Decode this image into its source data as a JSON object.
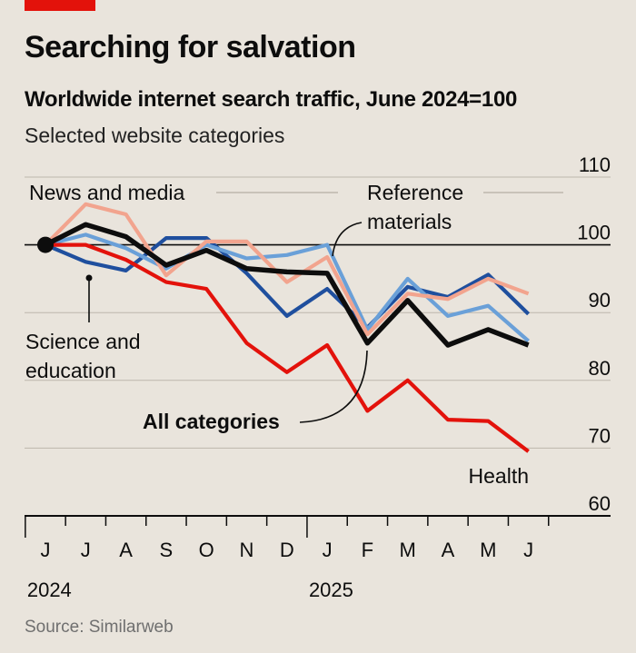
{
  "header": {
    "title": "Searching for salvation",
    "subtitle": "Worldwide internet search traffic, June 2024=100",
    "subsubtitle": "Selected website categories"
  },
  "source": "Source: Similarweb",
  "colors": {
    "background": "#e9e4dc",
    "accent": "#e3120b",
    "all_categories": "#0d0d0d",
    "news_and_media": "#1f4f9e",
    "reference_materials": "#6aa0d8",
    "science_and_education": "#f2a48e",
    "health": "#e3120b"
  },
  "chart_data": {
    "type": "line",
    "title": "Worldwide internet search traffic, June 2024=100",
    "ylim": [
      60,
      110
    ],
    "yticks": [
      60,
      70,
      80,
      90,
      100,
      110
    ],
    "reference_line": 100,
    "categories": [
      "J",
      "J",
      "A",
      "S",
      "O",
      "N",
      "D",
      "J",
      "F",
      "M",
      "A",
      "M",
      "J"
    ],
    "year_labels": [
      {
        "label": "2024",
        "start_index": 0
      },
      {
        "label": "2025",
        "start_index": 7
      }
    ],
    "series": [
      {
        "name": "News and media",
        "key": "news_and_media",
        "values": [
          100,
          97.5,
          96.2,
          101,
          101,
          95.8,
          89.5,
          93.5,
          87.8,
          93.8,
          92.3,
          95.6,
          89.8
        ]
      },
      {
        "name": "Reference materials",
        "key": "reference_materials",
        "values": [
          100,
          101.5,
          99.5,
          96.5,
          100,
          98,
          98.5,
          100,
          87.5,
          95,
          89.5,
          91,
          85.8
        ]
      },
      {
        "name": "Science and education",
        "key": "science_and_education",
        "values": [
          100,
          106,
          104.5,
          95.5,
          100.5,
          100.5,
          94.5,
          98.2,
          86.8,
          92.8,
          92,
          95,
          92.8
        ]
      },
      {
        "name": "Health",
        "key": "health",
        "values": [
          100,
          100,
          97.8,
          94.5,
          93.5,
          85.5,
          81.2,
          85.2,
          75.5,
          80,
          74.2,
          74,
          69.5
        ]
      },
      {
        "name": "All categories",
        "key": "all_categories",
        "values": [
          100,
          103,
          101.2,
          97,
          99.2,
          96.5,
          96,
          95.8,
          85.5,
          91.8,
          85.2,
          87.5,
          85.2
        ]
      }
    ],
    "annotations": [
      {
        "key": "news_and_media",
        "text": [
          "News and media"
        ]
      },
      {
        "key": "reference_materials",
        "text": [
          "Reference",
          "materials"
        ]
      },
      {
        "key": "science_and_education",
        "text": [
          "Science and",
          "education"
        ]
      },
      {
        "key": "all_categories",
        "text": [
          "All categories"
        ]
      },
      {
        "key": "health",
        "text": [
          "Health"
        ]
      }
    ]
  }
}
